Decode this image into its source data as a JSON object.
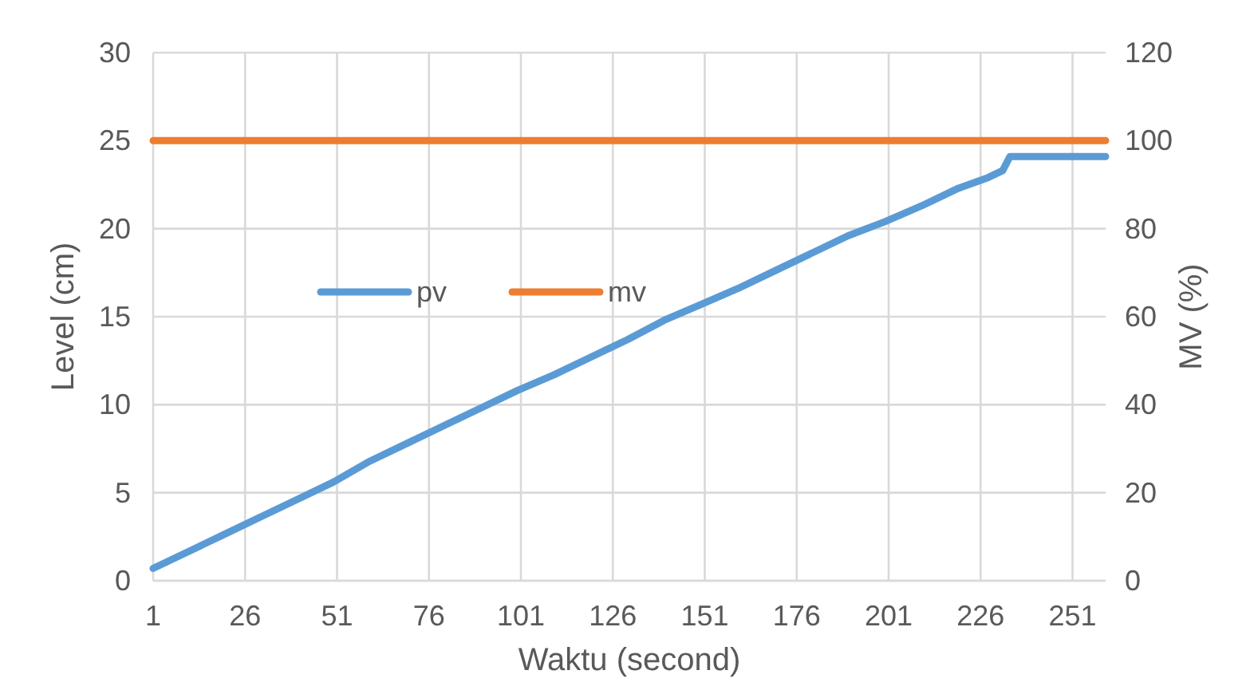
{
  "chart_data": {
    "type": "line",
    "xlabel": "Waktu (second)",
    "ylabel": "Level (cm)",
    "y2label": "MV (%)",
    "xlim": [
      1,
      260
    ],
    "xticks": [
      1,
      26,
      51,
      76,
      101,
      126,
      151,
      176,
      201,
      226,
      251
    ],
    "ylim": [
      0,
      30
    ],
    "yticks": [
      0,
      5,
      10,
      15,
      20,
      25,
      30
    ],
    "y2lim": [
      0,
      120
    ],
    "y2ticks": [
      0,
      20,
      40,
      60,
      80,
      100,
      120
    ],
    "grid": true,
    "legend": "left",
    "line_style": "solid",
    "marker": "none",
    "series": [
      {
        "name": "pv",
        "color": "#5b9bd5",
        "x": [
          1,
          10,
          20,
          30,
          40,
          50,
          60,
          70,
          80,
          90,
          100,
          110,
          120,
          130,
          140,
          150,
          160,
          170,
          180,
          190,
          200,
          210,
          220,
          228,
          232,
          234,
          260
        ],
        "values": [
          0.7,
          1.6,
          2.6,
          3.6,
          4.6,
          5.6,
          6.8,
          7.8,
          8.8,
          9.8,
          10.8,
          11.7,
          12.7,
          13.7,
          14.8,
          15.7,
          16.6,
          17.6,
          18.6,
          19.6,
          20.4,
          21.3,
          22.3,
          22.9,
          23.3,
          24.1,
          24.1
        ]
      },
      {
        "name": "mv",
        "color": "#ed7d31",
        "axis": "y2",
        "x": [
          1,
          260
        ],
        "values": [
          100,
          100
        ]
      }
    ]
  }
}
